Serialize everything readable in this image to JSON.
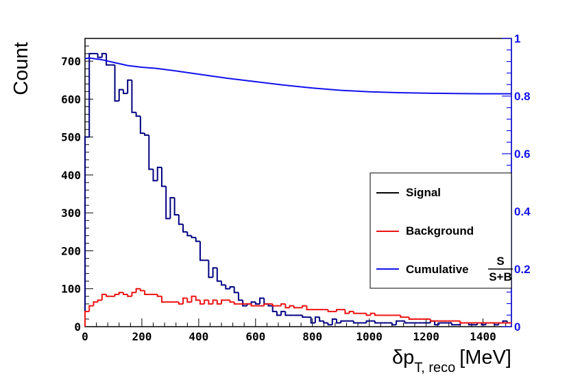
{
  "chart_data": {
    "type": "line",
    "subtype": "step-histogram-with-secondary-axis",
    "xlabel": "δp_T, reco [MeV]",
    "xlabel_main": "δp",
    "xlabel_sub": "T, reco",
    "xlabel_unit": "[MeV]",
    "ylabel": "Count",
    "xlim": [
      0,
      1500
    ],
    "ylim": [
      0,
      760
    ],
    "y2lim": [
      0,
      1.0
    ],
    "x_ticks": [
      0,
      200,
      400,
      600,
      800,
      1000,
      1200,
      1400
    ],
    "y_ticks": [
      0,
      100,
      200,
      300,
      400,
      500,
      600,
      700
    ],
    "y2_ticks": [
      0,
      0.2,
      0.4,
      0.6,
      0.8,
      1
    ],
    "y2_tick_labels": [
      "0",
      "0.2",
      "0.4",
      "0.6",
      "0.8",
      "1"
    ],
    "bin_width": 15,
    "series": [
      {
        "name": "Signal",
        "color": "#000080",
        "legend_color": "#000000",
        "kind": "histogram",
        "values": [
          500,
          720,
          720,
          710,
          720,
          690,
          690,
          595,
          625,
          615,
          650,
          565,
          555,
          510,
          505,
          415,
          385,
          420,
          370,
          285,
          340,
          295,
          270,
          250,
          240,
          235,
          225,
          175,
          175,
          130,
          155,
          120,
          110,
          100,
          105,
          90,
          70,
          55,
          60,
          65,
          60,
          75,
          60,
          55,
          40,
          30,
          40,
          30,
          30,
          30,
          30,
          25,
          25,
          10,
          25,
          15,
          10,
          5,
          20,
          10,
          15,
          15,
          15,
          10,
          10,
          10,
          15,
          15,
          10,
          10,
          10,
          10,
          5,
          15,
          15,
          10,
          10,
          10,
          10,
          10,
          10,
          15,
          5,
          10,
          10,
          10,
          5,
          5,
          10,
          10,
          5,
          5,
          10,
          5,
          10,
          10,
          5,
          10,
          15,
          10
        ]
      },
      {
        "name": "Background",
        "color": "#ee1111",
        "kind": "histogram",
        "values": [
          40,
          55,
          65,
          70,
          85,
          80,
          80,
          85,
          90,
          85,
          80,
          90,
          100,
          95,
          85,
          85,
          85,
          80,
          65,
          65,
          65,
          65,
          60,
          75,
          65,
          80,
          70,
          60,
          70,
          60,
          70,
          60,
          70,
          70,
          65,
          60,
          60,
          60,
          60,
          55,
          55,
          55,
          60,
          60,
          55,
          55,
          60,
          50,
          55,
          50,
          50,
          55,
          45,
          45,
          45,
          45,
          45,
          40,
          40,
          45,
          45,
          35,
          40,
          35,
          35,
          35,
          30,
          35,
          30,
          30,
          30,
          30,
          30,
          30,
          25,
          25,
          20,
          20,
          20,
          20,
          20,
          15,
          15,
          15,
          15,
          15,
          15,
          15,
          10,
          10,
          10,
          10,
          10,
          10,
          10,
          10,
          10,
          10,
          10,
          10
        ]
      },
      {
        "name": "Cumulative S/(S+B)",
        "legend_label": "Cumulative",
        "fraction_numerator": "S",
        "fraction_denominator": "S+B",
        "color": "#1010ee",
        "kind": "line",
        "axis": "right",
        "x": [
          0,
          15,
          30,
          60,
          100,
          150,
          200,
          250,
          300,
          400,
          500,
          600,
          700,
          800,
          900,
          1000,
          1100,
          1200,
          1300,
          1400,
          1500
        ],
        "y": [
          0.93,
          0.932,
          0.93,
          0.926,
          0.917,
          0.906,
          0.9,
          0.896,
          0.89,
          0.876,
          0.862,
          0.85,
          0.838,
          0.828,
          0.82,
          0.815,
          0.812,
          0.81,
          0.809,
          0.808,
          0.808
        ]
      }
    ],
    "legend": {
      "position": "middle-right",
      "entries": [
        "Signal",
        "Background",
        "Cumulative"
      ]
    }
  }
}
